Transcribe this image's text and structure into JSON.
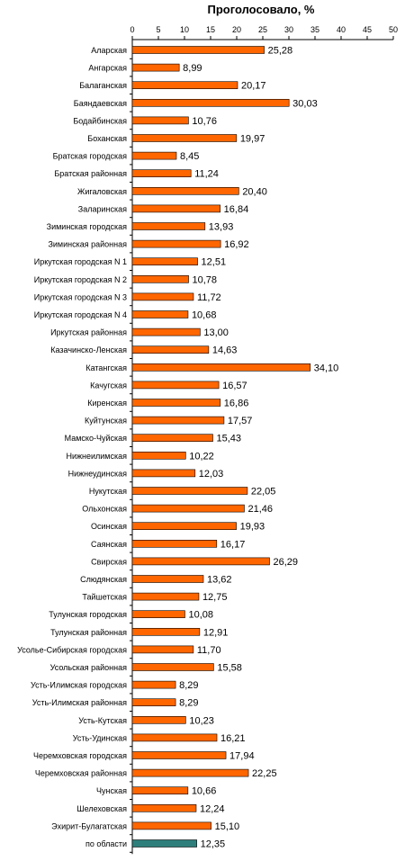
{
  "chart_data": {
    "type": "bar",
    "orientation": "horizontal",
    "title": "Проголосовало, %",
    "x_axis_position": "top",
    "xlim": [
      0,
      50
    ],
    "xticks": [
      "0",
      "5",
      "10",
      "15",
      "20",
      "25",
      "30",
      "35",
      "40",
      "45",
      "50"
    ],
    "grid": false,
    "legend": "none",
    "bar_color": "#FF6600",
    "highlight_color": "#2E7F7B",
    "categories": [
      "Аларская",
      "Ангарская",
      "Балаганская",
      "Баяндаевская",
      "Бодайбинская",
      "Боханская",
      "Братская городская",
      "Братская районная",
      "Жигаловская",
      "Заларинская",
      "Зиминская городская",
      "Зиминская районная",
      "Иркутская городская N 1",
      "Иркутская городская N 2",
      "Иркутская городская N 3",
      "Иркутская городская N 4",
      "Иркутская районная",
      "Казачинско-Ленская",
      "Катангская",
      "Качугская",
      "Киренская",
      "Куйтунская",
      "Мамско-Чуйская",
      "Нижнеилимская",
      "Нижнеудинская",
      "Нукутская",
      "Ольхонская",
      "Осинская",
      "Саянская",
      "Свирская",
      "Слюдянская",
      "Тайшетская",
      "Тулунская городская",
      "Тулунская районная",
      "Усолье-Сибирская городская",
      "Усольская районная",
      "Усть-Илимская городская",
      "Усть-Илимская районная",
      "Усть-Кутская",
      "Усть-Удинская",
      "Черемховская городская",
      "Черемховская районная",
      "Чунская",
      "Шелеховская",
      "Эхирит-Булагатская",
      "по области"
    ],
    "values": [
      25.28,
      8.99,
      20.17,
      30.03,
      10.76,
      19.97,
      8.45,
      11.24,
      20.4,
      16.84,
      13.93,
      16.92,
      12.51,
      10.78,
      11.72,
      10.68,
      13.0,
      14.63,
      34.1,
      16.57,
      16.86,
      17.57,
      15.43,
      10.22,
      12.03,
      22.05,
      21.46,
      19.93,
      16.17,
      26.29,
      13.62,
      12.75,
      10.08,
      12.91,
      11.7,
      15.58,
      8.29,
      8.29,
      10.23,
      16.21,
      17.94,
      22.25,
      10.66,
      12.24,
      15.1,
      12.35
    ],
    "value_labels": [
      "25,28",
      "8,99",
      "20,17",
      "30,03",
      "10,76",
      "19,97",
      "8,45",
      "11,24",
      "20,40",
      "16,84",
      "13,93",
      "16,92",
      "12,51",
      "10,78",
      "11,72",
      "10,68",
      "13,00",
      "14,63",
      "34,10",
      "16,57",
      "16,86",
      "17,57",
      "15,43",
      "10,22",
      "12,03",
      "22,05",
      "21,46",
      "19,93",
      "16,17",
      "26,29",
      "13,62",
      "12,75",
      "10,08",
      "12,91",
      "11,70",
      "15,58",
      "8,29",
      "8,29",
      "10,23",
      "16,21",
      "17,94",
      "22,25",
      "10,66",
      "12,24",
      "15,10",
      "12,35"
    ],
    "highlight_category": "по области"
  }
}
